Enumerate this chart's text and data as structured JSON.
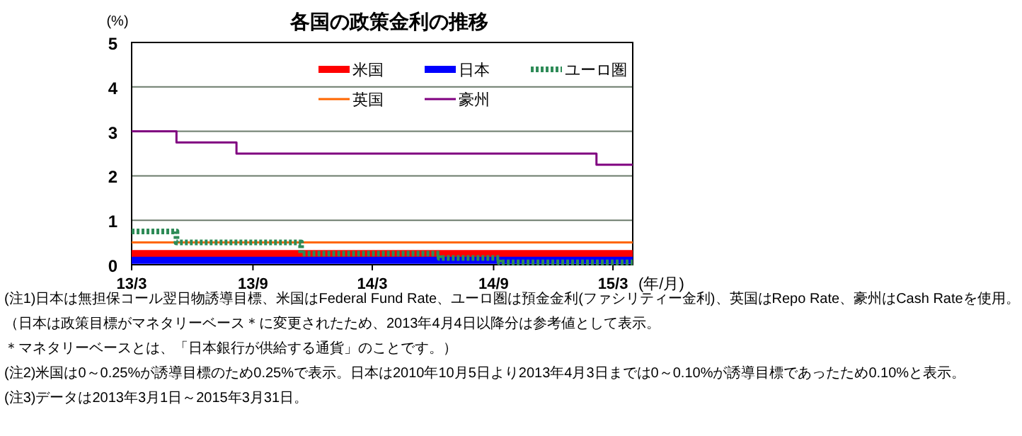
{
  "chart_data": {
    "type": "step",
    "title": "各国の政策金利の推移",
    "ylabel": "(%)",
    "xlabel": "(年/月)",
    "xlim": [
      "2013-03-01",
      "2015-03-31"
    ],
    "xticks": [
      {
        "value": "2013-03-01",
        "label": "13/3"
      },
      {
        "value": "2013-09-01",
        "label": "13/9"
      },
      {
        "value": "2014-03-01",
        "label": "14/3"
      },
      {
        "value": "2014-09-01",
        "label": "14/9"
      },
      {
        "value": "2015-03-01",
        "label": "15/3"
      }
    ],
    "ylim": [
      0,
      5
    ],
    "yticks": [
      0,
      1,
      2,
      3,
      4,
      5
    ],
    "grid": "y",
    "legend": "top right",
    "line_style": "solid",
    "series": [
      {
        "name": "米国",
        "color": "#ff0000",
        "x": [
          "2013-03-01",
          "2015-03-31"
        ],
        "values": [
          0.25,
          0.25
        ]
      },
      {
        "name": "日本",
        "color": "#0000ff",
        "x": [
          "2013-03-01",
          "2015-03-31"
        ],
        "values": [
          0.1,
          0.1
        ]
      },
      {
        "name": "ユーロ圏",
        "color": "#2e8b57",
        "line_style": "dotted",
        "x": [
          "2013-03-01",
          "2013-05-08",
          "2013-11-13",
          "2014-06-11",
          "2014-09-10",
          "2015-03-31"
        ],
        "values": [
          0.75,
          0.5,
          0.25,
          0.15,
          0.05,
          0.05
        ]
      },
      {
        "name": "英国",
        "color": "#ff6600",
        "x": [
          "2013-03-01",
          "2015-03-31"
        ],
        "values": [
          0.5,
          0.5
        ]
      },
      {
        "name": "豪州",
        "color": "#800080",
        "x": [
          "2013-03-01",
          "2013-05-08",
          "2013-08-07",
          "2015-02-04",
          "2015-03-31"
        ],
        "values": [
          3,
          2.75,
          2.5,
          2.25,
          2.25
        ]
      }
    ],
    "annotations": [
      "(注1)日本は無担保コール翌日物誘導目標、米国はFederal Fund Rate、ユーロ圏は預金金利(ファシリティー金利)、英国はRepo Rate、豪州はCash Rateを使用。",
      "（日本は政策目標がマネタリーベース＊に変更されたため、2013年4月4日以降分は参考値として表示。",
      "＊マネタリーベースとは、「日本銀行が供給する通貨」のことです。）",
      "(注2)米国は0～0.25%が誘導目標のため0.25%で表示。日本は2010年10月5日より2013年4月3日までは0～0.10%が誘導目標であったため0.10%と表示。",
      "(注3)データは2013年3月1日～2015年3月31日。"
    ]
  }
}
